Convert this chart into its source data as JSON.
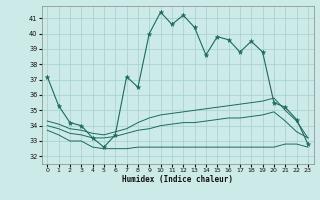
{
  "title": "",
  "xlabel": "Humidex (Indice chaleur)",
  "ylabel": "",
  "bg_color": "#cceae7",
  "grid_color": "#aad4d0",
  "line_color": "#1a6b5e",
  "xlim": [
    -0.5,
    23.5
  ],
  "ylim": [
    31.5,
    41.8
  ],
  "yticks": [
    32,
    33,
    34,
    35,
    36,
    37,
    38,
    39,
    40,
    41
  ],
  "xticks": [
    0,
    1,
    2,
    3,
    4,
    5,
    6,
    7,
    8,
    9,
    10,
    11,
    12,
    13,
    14,
    15,
    16,
    17,
    18,
    19,
    20,
    21,
    22,
    23
  ],
  "series1_x": [
    0,
    1,
    2,
    3,
    4,
    5,
    6,
    7,
    8,
    9,
    10,
    11,
    12,
    13,
    14,
    15,
    16,
    17,
    18,
    19,
    20,
    21,
    22,
    23
  ],
  "series1_y": [
    37.2,
    35.3,
    34.2,
    34.0,
    33.2,
    32.6,
    33.4,
    37.2,
    36.5,
    40.0,
    41.4,
    40.6,
    41.2,
    40.4,
    38.6,
    39.8,
    39.6,
    38.8,
    39.5,
    38.8,
    35.5,
    35.2,
    34.4,
    32.8
  ],
  "series2_x": [
    0,
    1,
    2,
    3,
    4,
    5,
    6,
    7,
    8,
    9,
    10,
    11,
    12,
    13,
    14,
    15,
    16,
    17,
    18,
    19,
    20,
    21,
    22,
    23
  ],
  "series2_y": [
    33.7,
    33.4,
    33.0,
    33.0,
    32.6,
    32.5,
    32.5,
    32.5,
    32.6,
    32.6,
    32.6,
    32.6,
    32.6,
    32.6,
    32.6,
    32.6,
    32.6,
    32.6,
    32.6,
    32.6,
    32.6,
    32.8,
    32.8,
    32.6
  ],
  "series3_x": [
    0,
    1,
    2,
    3,
    4,
    5,
    6,
    7,
    8,
    9,
    10,
    11,
    12,
    13,
    14,
    15,
    16,
    17,
    18,
    19,
    20,
    21,
    22,
    23
  ],
  "series3_y": [
    34.0,
    33.8,
    33.5,
    33.4,
    33.2,
    33.2,
    33.3,
    33.5,
    33.7,
    33.8,
    34.0,
    34.1,
    34.2,
    34.2,
    34.3,
    34.4,
    34.5,
    34.5,
    34.6,
    34.7,
    34.9,
    34.3,
    33.6,
    33.2
  ],
  "series4_x": [
    0,
    1,
    2,
    3,
    4,
    5,
    6,
    7,
    8,
    9,
    10,
    11,
    12,
    13,
    14,
    15,
    16,
    17,
    18,
    19,
    20,
    21,
    22,
    23
  ],
  "series4_y": [
    34.3,
    34.1,
    33.8,
    33.7,
    33.5,
    33.4,
    33.6,
    33.8,
    34.2,
    34.5,
    34.7,
    34.8,
    34.9,
    35.0,
    35.1,
    35.2,
    35.3,
    35.4,
    35.5,
    35.6,
    35.8,
    35.0,
    34.3,
    33.2
  ]
}
